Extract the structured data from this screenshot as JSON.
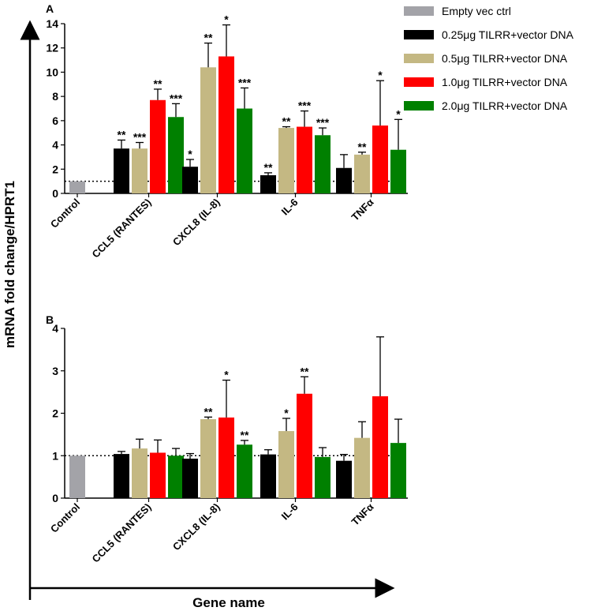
{
  "figure": {
    "y_axis_label": "mRNA fold change/HPRT1",
    "x_axis_label": "Gene name",
    "legend": [
      {
        "label": "Empty vec ctrl",
        "color": "#a3a3a8"
      },
      {
        "label": "0.25μg TILRR+vector DNA",
        "color": "#000000"
      },
      {
        "label": "0.5μg TILRR+vector DNA",
        "color": "#c4b883"
      },
      {
        "label": "1.0μg TILRR+vector DNA",
        "color": "#ff0000"
      },
      {
        "label": "2.0μg TILRR+vector DNA",
        "color": "#008000"
      }
    ]
  },
  "chart_data": [
    {
      "type": "bar",
      "panel": "A",
      "categories": [
        "Control",
        "CCL5 (RANTES)",
        "CXCL8 (IL-8)",
        "IL-6",
        "TNFα"
      ],
      "ylim": [
        0,
        14
      ],
      "yticks": [
        0,
        2,
        4,
        6,
        8,
        10,
        12,
        14
      ],
      "ytick_labels": [
        "0",
        "2",
        "4",
        "6",
        "8",
        "10",
        "12",
        "14"
      ],
      "reference_line": 1,
      "series": [
        {
          "name": "Empty vec ctrl",
          "values": [
            1,
            null,
            null,
            null,
            null
          ],
          "errors": [
            0,
            null,
            null,
            null,
            null
          ],
          "stars": [
            "",
            "",
            "",
            "",
            ""
          ]
        },
        {
          "name": "0.25μg TILRR+vector DNA",
          "values": [
            null,
            3.7,
            2.2,
            1.5,
            2.1
          ],
          "errors": [
            null,
            0.7,
            0.6,
            0.2,
            1.1
          ],
          "stars": [
            "",
            "**",
            "*",
            "**",
            ""
          ]
        },
        {
          "name": "0.5μg TILRR+vector DNA",
          "values": [
            null,
            3.7,
            10.4,
            5.4,
            3.2
          ],
          "errors": [
            null,
            0.5,
            2.0,
            0.1,
            0.2
          ],
          "stars": [
            "",
            "***",
            "**",
            "**",
            "**"
          ]
        },
        {
          "name": "1.0μg TILRR+vector DNA",
          "values": [
            null,
            7.7,
            11.3,
            5.5,
            5.6
          ],
          "errors": [
            null,
            0.9,
            2.6,
            1.3,
            3.7
          ],
          "stars": [
            "",
            "**",
            "*",
            "***",
            "*"
          ]
        },
        {
          "name": "2.0μg TILRR+vector DNA",
          "values": [
            null,
            6.3,
            7.0,
            4.8,
            3.6
          ],
          "errors": [
            null,
            1.1,
            1.7,
            0.6,
            2.5
          ],
          "stars": [
            "",
            "***",
            "***",
            "***",
            "*"
          ]
        }
      ]
    },
    {
      "type": "bar",
      "panel": "B",
      "categories": [
        "Control",
        "CCL5 (RANTES)",
        "CXCL8 (IL-8)",
        "IL-6",
        "TNFα"
      ],
      "ylim": [
        0,
        4
      ],
      "yticks": [
        0,
        1,
        2,
        3,
        4
      ],
      "ytick_labels": [
        "0",
        "1",
        "2",
        "3",
        "4"
      ],
      "reference_line": 1,
      "series": [
        {
          "name": "Empty vec ctrl",
          "values": [
            1,
            null,
            null,
            null,
            null
          ],
          "errors": [
            0,
            null,
            null,
            null,
            null
          ],
          "stars": [
            "",
            "",
            "",
            "",
            ""
          ]
        },
        {
          "name": "0.25μg TILRR+vector DNA",
          "values": [
            null,
            1.04,
            0.93,
            1.03,
            0.88
          ],
          "errors": [
            null,
            0.06,
            0.12,
            0.11,
            0.15
          ],
          "stars": [
            "",
            "",
            "",
            "",
            ""
          ]
        },
        {
          "name": "0.5μg TILRR+vector DNA",
          "values": [
            null,
            1.17,
            1.86,
            1.58,
            1.42
          ],
          "errors": [
            null,
            0.22,
            0.05,
            0.3,
            0.38
          ],
          "stars": [
            "",
            "",
            "**",
            "*",
            ""
          ]
        },
        {
          "name": "1.0μg TILRR+vector DNA",
          "values": [
            null,
            1.07,
            1.9,
            2.46,
            2.4
          ],
          "errors": [
            null,
            0.3,
            0.88,
            0.4,
            1.4
          ],
          "stars": [
            "",
            "",
            "*",
            "**",
            ""
          ]
        },
        {
          "name": "2.0μg TILRR+vector DNA",
          "values": [
            null,
            1.0,
            1.26,
            0.97,
            1.3
          ],
          "errors": [
            null,
            0.17,
            0.1,
            0.22,
            0.56
          ],
          "stars": [
            "",
            "",
            "**",
            "",
            ""
          ]
        }
      ]
    }
  ]
}
